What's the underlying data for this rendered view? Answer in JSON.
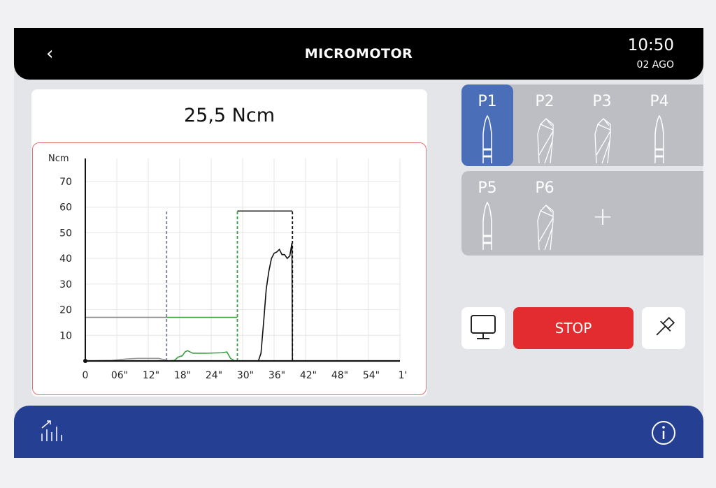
{
  "header": {
    "title": "MICROMOTOR",
    "time": "10:50",
    "date": "02 AGO",
    "back_icon": "chevron-left-icon"
  },
  "reading": {
    "value": "25,5 Ncm"
  },
  "chart_data": {
    "type": "line",
    "ylabel": "Ncm",
    "yticks": [
      "10",
      "20",
      "30",
      "40",
      "50",
      "60",
      "70"
    ],
    "xticks": [
      "0",
      "06\"",
      "12\"",
      "18\"",
      "24\"",
      "30\"",
      "36\"",
      "42\"",
      "48\"",
      "54\"",
      "1'"
    ],
    "xlim": [
      0,
      60
    ],
    "ylim": [
      0,
      79
    ],
    "grid": true,
    "limits": [
      {
        "color": "#888888",
        "x": [
          0,
          15.5
        ],
        "y": 17
      },
      {
        "color": "#3aa040",
        "x": [
          15.5,
          29
        ],
        "y": 17
      },
      {
        "color": "#222222",
        "x": [
          29,
          39.5
        ],
        "y": 58.5
      }
    ],
    "markers": [
      {
        "x": 15.5,
        "color": "#7a7f99",
        "top": 59
      },
      {
        "x": 29,
        "color": "#3aa040",
        "top": 59
      },
      {
        "x": 39.5,
        "color": "#111111",
        "top": 59
      }
    ],
    "series": [
      {
        "color": "#999999",
        "points": [
          [
            0,
            0
          ],
          [
            5,
            0.2
          ],
          [
            8,
            0.8
          ],
          [
            10,
            1
          ],
          [
            14,
            1
          ],
          [
            15.5,
            0.3
          ]
        ]
      },
      {
        "color": "#3aa040",
        "points": [
          [
            15.5,
            0
          ],
          [
            17,
            0.2
          ],
          [
            17.7,
            1.5
          ],
          [
            18.5,
            2
          ],
          [
            19,
            3.5
          ],
          [
            19.5,
            4
          ],
          [
            20.5,
            3
          ],
          [
            23,
            3
          ],
          [
            26,
            3.2
          ],
          [
            27,
            3.5
          ],
          [
            27.7,
            1
          ],
          [
            28.5,
            0
          ],
          [
            29,
            0
          ]
        ]
      },
      {
        "color": "#111111",
        "points": [
          [
            29,
            0
          ],
          [
            33,
            0
          ],
          [
            33.5,
            3
          ],
          [
            34,
            15
          ],
          [
            34.5,
            28
          ],
          [
            35,
            35
          ],
          [
            35.5,
            40
          ],
          [
            36,
            42
          ],
          [
            36.5,
            42.5
          ],
          [
            37,
            43.5
          ],
          [
            37.5,
            41.5
          ],
          [
            38,
            41.5
          ],
          [
            38.5,
            40
          ],
          [
            39,
            41
          ],
          [
            39.4,
            46
          ],
          [
            39.5,
            0
          ]
        ]
      }
    ]
  },
  "programs": {
    "row1": [
      {
        "label": "P1",
        "tool": "bur",
        "selected": true
      },
      {
        "label": "P2",
        "tool": "drill"
      },
      {
        "label": "P3",
        "tool": "drill"
      },
      {
        "label": "P4",
        "tool": "bur"
      }
    ],
    "row2": [
      {
        "label": "P5",
        "tool": "bur"
      },
      {
        "label": "P6",
        "tool": "drill"
      }
    ],
    "add_icon": "plus-icon"
  },
  "controls": {
    "stop_label": "STOP",
    "monitor_icon": "monitor-icon",
    "pin_icon": "pin-icon"
  },
  "footer": {
    "stats_icon": "bar-chart-icon",
    "info_icon": "info-icon"
  }
}
